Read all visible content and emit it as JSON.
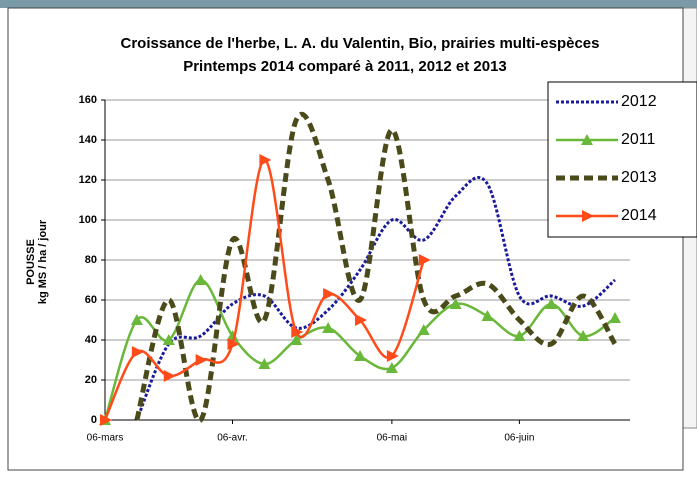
{
  "chart_data": {
    "type": "line",
    "title": "Croissance de l'herbe, L. A. du Valentin, Bio, prairies multi-espèces",
    "subtitle": "Printemps 2014 comparé à 2011, 2012 et 2013",
    "y_label": [
      "POUSSE",
      "kg MS / ha / jour"
    ],
    "categories": [
      "06-mars",
      null,
      null,
      null,
      "06-avr.",
      null,
      null,
      null,
      null,
      "06-mai",
      null,
      null,
      null,
      "06-juin",
      null,
      null,
      null
    ],
    "ylim": [
      0,
      160
    ],
    "yticks": [
      0,
      20,
      40,
      60,
      80,
      100,
      120,
      140,
      160
    ],
    "grid": true,
    "legend": "top-right",
    "series": [
      {
        "name": "2012",
        "color": "#1a1a9c",
        "style": "dotted",
        "values": [
          null,
          0,
          38,
          42,
          58,
          62,
          46,
          55,
          75,
          100,
          90,
          112,
          118,
          62,
          62,
          57,
          70
        ]
      },
      {
        "name": "2011",
        "color": "#6ab83a",
        "style": "solid",
        "marker": "triangle-up",
        "values": [
          0,
          50,
          40,
          70,
          42,
          28,
          40,
          46,
          32,
          26,
          45,
          58,
          52,
          42,
          58,
          42,
          51
        ]
      },
      {
        "name": "2013",
        "color": "#4a4a1a",
        "style": "dashed",
        "values": [
          null,
          0,
          60,
          0,
          90,
          50,
          150,
          120,
          60,
          145,
          60,
          62,
          68,
          50,
          38,
          62,
          38
        ]
      },
      {
        "name": "2014",
        "color": "#ff4b1a",
        "style": "solid",
        "marker": "triangle-right",
        "values": [
          0,
          34,
          22,
          30,
          38,
          130,
          44,
          63,
          50,
          32,
          80,
          null,
          null,
          null,
          null,
          null,
          null
        ]
      }
    ]
  }
}
